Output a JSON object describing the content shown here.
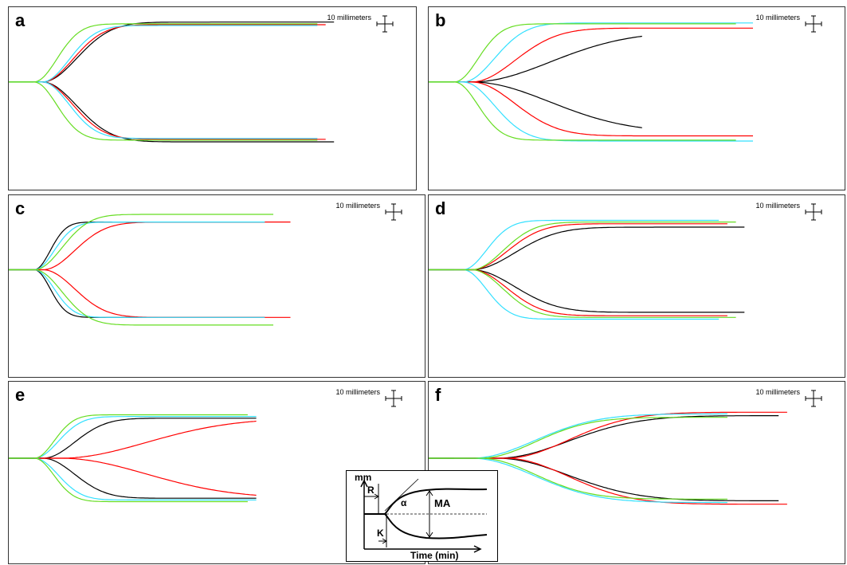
{
  "scale_label": "10 millimeters",
  "colors": {
    "black": "#000000",
    "red": "#ff0000",
    "cyan": "#33e0ff",
    "green": "#66dd22",
    "baseline": "#33dd33"
  },
  "panels": [
    {
      "label": "a"
    },
    {
      "label": "b"
    },
    {
      "label": "c"
    },
    {
      "label": "d"
    },
    {
      "label": "e"
    },
    {
      "label": "f"
    }
  ],
  "inset": {
    "y_label": "mm",
    "r_label": "R",
    "k_label": "K",
    "alpha_label": "α",
    "ma_label": "MA",
    "x_label": "Time (min)"
  },
  "chart_data": [
    {
      "type": "line",
      "panel": "a",
      "unit": "mm",
      "series": [
        {
          "color": "black",
          "r": 4,
          "k": 4.5,
          "ma": 70,
          "end": 39
        },
        {
          "color": "red",
          "r": 4,
          "k": 4.0,
          "ma": 67,
          "end": 38
        },
        {
          "color": "cyan",
          "r": 4,
          "k": 3.5,
          "ma": 66,
          "end": 37
        },
        {
          "color": "green",
          "r": 3,
          "k": 3.0,
          "ma": 68,
          "end": 37
        }
      ]
    },
    {
      "type": "line",
      "panel": "b",
      "unit": "mm",
      "series": [
        {
          "color": "black",
          "r": 5,
          "k": 10.0,
          "ma": 59,
          "end": 25
        },
        {
          "color": "red",
          "r": 5,
          "k": 5.5,
          "ma": 63,
          "end": 38
        },
        {
          "color": "cyan",
          "r": 4,
          "k": 4.0,
          "ma": 69,
          "end": 38
        },
        {
          "color": "green",
          "r": 3,
          "k": 3.0,
          "ma": 68,
          "end": 36
        }
      ]
    },
    {
      "type": "line",
      "panel": "c",
      "unit": "mm",
      "series": [
        {
          "color": "black",
          "r": 3,
          "k": 2.0,
          "ma": 56,
          "end": 30
        },
        {
          "color": "red",
          "r": 4,
          "k": 4.0,
          "ma": 56,
          "end": 33
        },
        {
          "color": "cyan",
          "r": 3,
          "k": 2.5,
          "ma": 56,
          "end": 30
        },
        {
          "color": "green",
          "r": 3,
          "k": 3.5,
          "ma": 65,
          "end": 31
        }
      ]
    },
    {
      "type": "line",
      "panel": "d",
      "unit": "mm",
      "series": [
        {
          "color": "black",
          "r": 5,
          "k": 5.5,
          "ma": 50,
          "end": 37
        },
        {
          "color": "red",
          "r": 5,
          "k": 4.5,
          "ma": 54,
          "end": 35
        },
        {
          "color": "cyan",
          "r": 4,
          "k": 3.0,
          "ma": 58,
          "end": 34
        },
        {
          "color": "green",
          "r": 5,
          "k": 4.0,
          "ma": 56,
          "end": 36
        }
      ]
    },
    {
      "type": "line",
      "panel": "e",
      "unit": "mm",
      "series": [
        {
          "color": "black",
          "r": 4,
          "k": 4.0,
          "ma": 47,
          "end": 29
        },
        {
          "color": "red",
          "r": 6,
          "k": 11.0,
          "ma": 47,
          "end": 29
        },
        {
          "color": "cyan",
          "r": 3,
          "k": 3.0,
          "ma": 49,
          "end": 29
        },
        {
          "color": "green",
          "r": 3,
          "k": 2.5,
          "ma": 51,
          "end": 28
        }
      ]
    },
    {
      "type": "line",
      "panel": "f",
      "unit": "mm",
      "series": [
        {
          "color": "black",
          "r": 8,
          "k": 9.0,
          "ma": 50,
          "end": 41
        },
        {
          "color": "red",
          "r": 9,
          "k": 8.0,
          "ma": 54,
          "end": 42
        },
        {
          "color": "cyan",
          "r": 5,
          "k": 8.0,
          "ma": 52,
          "end": 35
        },
        {
          "color": "green",
          "r": 6,
          "k": 7.0,
          "ma": 48,
          "end": 35
        }
      ]
    }
  ]
}
